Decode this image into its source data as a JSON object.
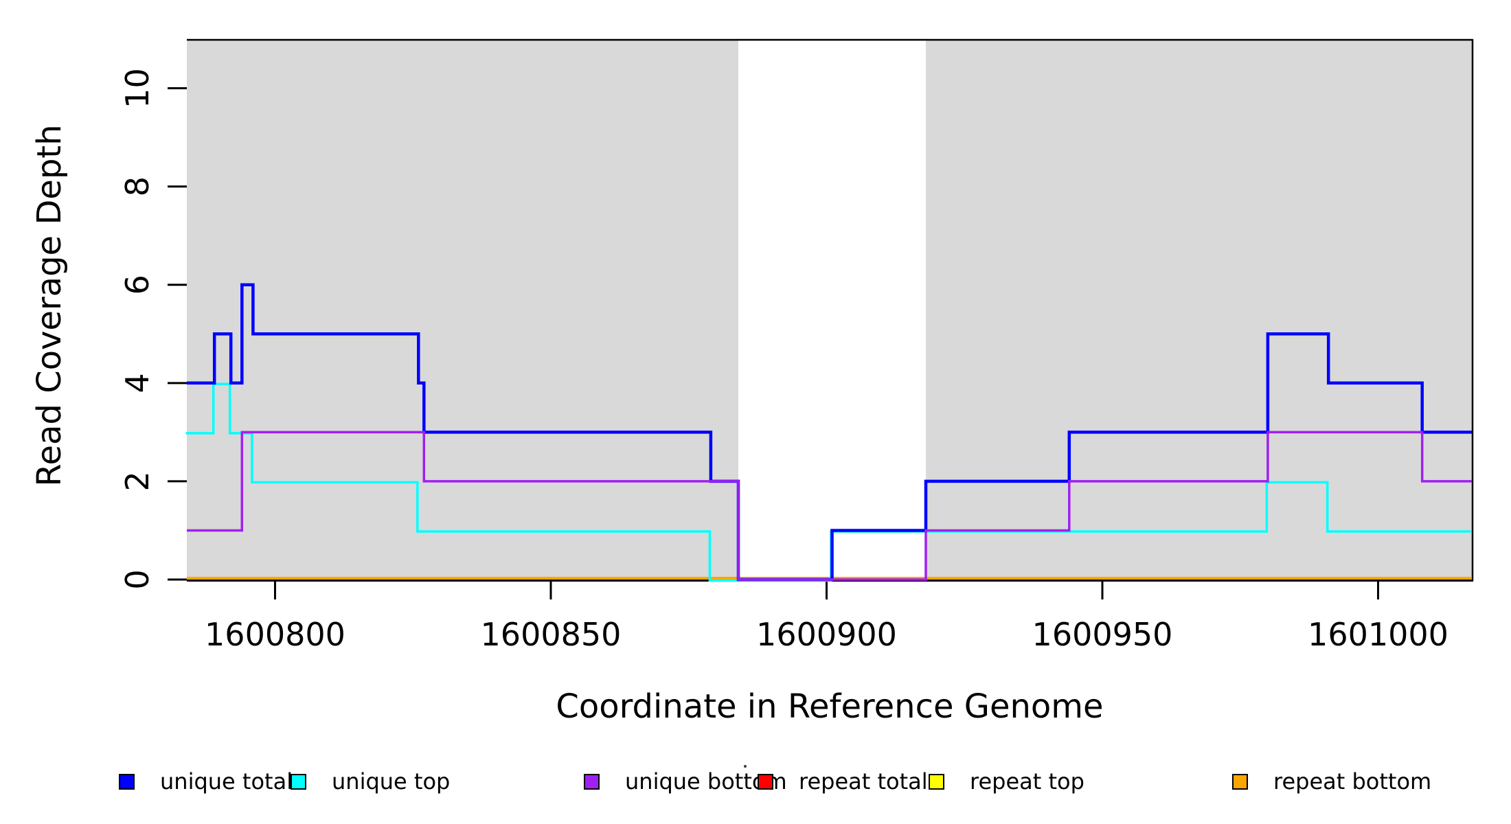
{
  "figure": {
    "xlabel": "Coordinate in Reference Genome",
    "ylabel": "Read Coverage Depth"
  },
  "legend": {
    "items": [
      {
        "label": "unique total",
        "color": "#0000FF"
      },
      {
        "label": "unique top",
        "color": "#00FFFF"
      },
      {
        "label": "unique bottom",
        "color": "#A020F0"
      },
      {
        "label": "repeat total",
        "color": "#FF0000"
      },
      {
        "label": "repeat top",
        "color": "#FFFF00"
      },
      {
        "label": "repeat bottom",
        "color": "#FFA500"
      }
    ]
  },
  "chart_data": {
    "type": "line",
    "subtype": "step",
    "title": "",
    "xlabel": "Coordinate in Reference Genome",
    "ylabel": "Read Coverage Depth",
    "xlim": [
      1600784,
      1601017
    ],
    "ylim": [
      0,
      11
    ],
    "x_ticks": [
      1600800,
      1600850,
      1600900,
      1600950,
      1601000
    ],
    "y_ticks": [
      0,
      2,
      4,
      6,
      8,
      10
    ],
    "grid": false,
    "legend_position": "bottom-horizontal",
    "background_shading": {
      "color": "#D9D9D9",
      "regions": [
        [
          1600784,
          1600884
        ],
        [
          1600918,
          1601017
        ]
      ]
    },
    "series": [
      {
        "name": "repeat total",
        "color": "#FF0000",
        "width": 3,
        "steps": [
          [
            1600784,
            0
          ],
          [
            1601017,
            0
          ]
        ]
      },
      {
        "name": "repeat top",
        "color": "#FFFF00",
        "width": 3,
        "steps": [
          [
            1600784,
            0
          ],
          [
            1601017,
            0
          ]
        ]
      },
      {
        "name": "repeat bottom",
        "color": "#FFA500",
        "width": 4,
        "steps": [
          [
            1600784,
            0
          ],
          [
            1601017,
            0
          ]
        ]
      },
      {
        "name": "unique top",
        "color": "#00FFFF",
        "width": 3.5,
        "steps": [
          [
            1600784,
            3
          ],
          [
            1600789,
            4
          ],
          [
            1600792,
            3
          ],
          [
            1600796,
            2
          ],
          [
            1600826,
            1
          ],
          [
            1600879,
            0
          ],
          [
            1600901,
            1
          ],
          [
            1600980,
            2
          ],
          [
            1600991,
            1
          ],
          [
            1601017,
            1
          ]
        ]
      },
      {
        "name": "unique total",
        "color": "#0000FF",
        "width": 4.5,
        "steps": [
          [
            1600784,
            4
          ],
          [
            1600789,
            5
          ],
          [
            1600792,
            4
          ],
          [
            1600794,
            6
          ],
          [
            1600796,
            5
          ],
          [
            1600826,
            4
          ],
          [
            1600827,
            3
          ],
          [
            1600879,
            2
          ],
          [
            1600884,
            0
          ],
          [
            1600901,
            1
          ],
          [
            1600918,
            2
          ],
          [
            1600944,
            3
          ],
          [
            1600980,
            5
          ],
          [
            1600991,
            4
          ],
          [
            1601008,
            3
          ],
          [
            1601017,
            3
          ]
        ]
      },
      {
        "name": "unique bottom",
        "color": "#A020F0",
        "width": 3.5,
        "steps": [
          [
            1600784,
            1
          ],
          [
            1600794,
            3
          ],
          [
            1600827,
            2
          ],
          [
            1600884,
            0
          ],
          [
            1600918,
            1
          ],
          [
            1600944,
            2
          ],
          [
            1600980,
            3
          ],
          [
            1601008,
            2
          ],
          [
            1601017,
            2
          ]
        ]
      }
    ]
  }
}
